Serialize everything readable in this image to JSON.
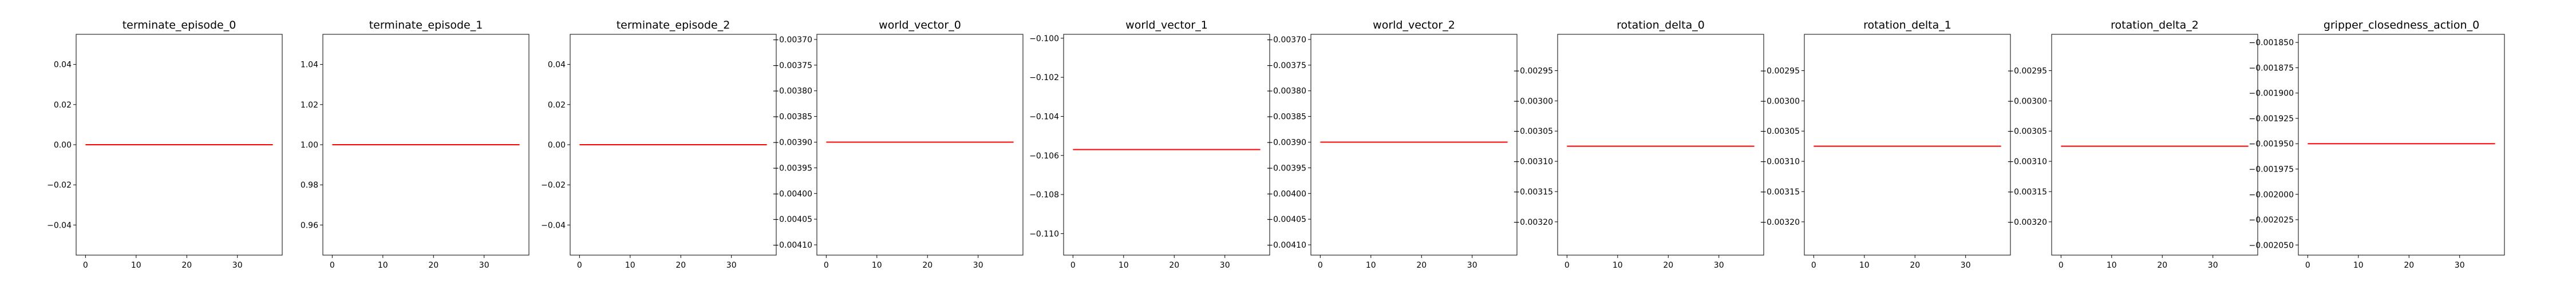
{
  "chart_data": [
    {
      "type": "line",
      "title": "terminate_episode_0",
      "x": [
        0,
        37
      ],
      "xticks": [
        0,
        10,
        20,
        30
      ],
      "xlim": [
        -1.85,
        38.85
      ],
      "yticks": [
        0.04,
        0.02,
        0.0,
        -0.02,
        -0.04
      ],
      "ytick_labels": [
        "0.04",
        "0.02",
        "0.00",
        "−0.02",
        "−0.04"
      ],
      "ylim": [
        -0.055,
        0.055
      ],
      "series": [
        {
          "values": [
            0.0,
            0.0
          ],
          "color": "#ff0000"
        }
      ],
      "grid": false
    },
    {
      "type": "line",
      "title": "terminate_episode_1",
      "x": [
        0,
        37
      ],
      "xticks": [
        0,
        10,
        20,
        30
      ],
      "xlim": [
        -1.85,
        38.85
      ],
      "yticks": [
        1.04,
        1.02,
        1.0,
        0.98,
        0.96
      ],
      "ytick_labels": [
        "1.04",
        "1.02",
        "1.00",
        "0.98",
        "0.96"
      ],
      "ylim": [
        0.945,
        1.055
      ],
      "series": [
        {
          "values": [
            1.0,
            1.0
          ],
          "color": "#ff0000"
        }
      ],
      "grid": false
    },
    {
      "type": "line",
      "title": "terminate_episode_2",
      "x": [
        0,
        37
      ],
      "xticks": [
        0,
        10,
        20,
        30
      ],
      "xlim": [
        -1.85,
        38.85
      ],
      "yticks": [
        0.04,
        0.02,
        0.0,
        -0.02,
        -0.04
      ],
      "ytick_labels": [
        "0.04",
        "0.02",
        "0.00",
        "−0.02",
        "−0.04"
      ],
      "ylim": [
        -0.055,
        0.055
      ],
      "series": [
        {
          "values": [
            0.0,
            0.0
          ],
          "color": "#ff0000"
        }
      ],
      "grid": false
    },
    {
      "type": "line",
      "title": "world_vector_0",
      "x": [
        0,
        37
      ],
      "xticks": [
        0,
        10,
        20,
        30
      ],
      "xlim": [
        -1.85,
        38.85
      ],
      "yticks": [
        -0.0037,
        -0.00375,
        -0.0038,
        -0.00385,
        -0.0039,
        -0.00395,
        -0.004,
        -0.00405,
        -0.0041
      ],
      "ytick_labels": [
        "−0.00370",
        "−0.00375",
        "−0.00380",
        "−0.00385",
        "−0.00390",
        "−0.00395",
        "−0.00400",
        "−0.00405",
        "−0.00410"
      ],
      "ylim": [
        -0.00412,
        -0.00369
      ],
      "series": [
        {
          "values": [
            -0.0039,
            -0.0039
          ],
          "color": "#ff0000"
        }
      ],
      "grid": false
    },
    {
      "type": "line",
      "title": "world_vector_1",
      "x": [
        0,
        37
      ],
      "xticks": [
        0,
        10,
        20,
        30
      ],
      "xlim": [
        -1.85,
        38.85
      ],
      "yticks": [
        -0.1,
        -0.102,
        -0.104,
        -0.106,
        -0.108,
        -0.11
      ],
      "ytick_labels": [
        "−0.100",
        "−0.102",
        "−0.104",
        "−0.106",
        "−0.108",
        "−0.110"
      ],
      "ylim": [
        -0.1111,
        -0.0998
      ],
      "series": [
        {
          "values": [
            -0.1057,
            -0.1057
          ],
          "color": "#ff0000"
        }
      ],
      "grid": false
    },
    {
      "type": "line",
      "title": "world_vector_2",
      "x": [
        0,
        37
      ],
      "xticks": [
        0,
        10,
        20,
        30
      ],
      "xlim": [
        -1.85,
        38.85
      ],
      "yticks": [
        -0.0037,
        -0.00375,
        -0.0038,
        -0.00385,
        -0.0039,
        -0.00395,
        -0.004,
        -0.00405,
        -0.0041
      ],
      "ytick_labels": [
        "−0.00370",
        "−0.00375",
        "−0.00380",
        "−0.00385",
        "−0.00390",
        "−0.00395",
        "−0.00400",
        "−0.00405",
        "−0.00410"
      ],
      "ylim": [
        -0.00412,
        -0.00369
      ],
      "series": [
        {
          "values": [
            -0.0039,
            -0.0039
          ],
          "color": "#ff0000"
        }
      ],
      "grid": false
    },
    {
      "type": "line",
      "title": "rotation_delta_0",
      "x": [
        0,
        37
      ],
      "xticks": [
        0,
        10,
        20,
        30
      ],
      "xlim": [
        -1.85,
        38.85
      ],
      "yticks": [
        -0.00295,
        -0.003,
        -0.00305,
        -0.0031,
        -0.00315,
        -0.0032
      ],
      "ytick_labels": [
        "−0.00295",
        "−0.00300",
        "−0.00305",
        "−0.00310",
        "−0.00315",
        "−0.00320"
      ],
      "ylim": [
        -0.003255,
        -0.00289
      ],
      "series": [
        {
          "values": [
            -0.003075,
            -0.003075
          ],
          "color": "#ff0000"
        }
      ],
      "grid": false
    },
    {
      "type": "line",
      "title": "rotation_delta_1",
      "x": [
        0,
        37
      ],
      "xticks": [
        0,
        10,
        20,
        30
      ],
      "xlim": [
        -1.85,
        38.85
      ],
      "yticks": [
        -0.00295,
        -0.003,
        -0.00305,
        -0.0031,
        -0.00315,
        -0.0032
      ],
      "ytick_labels": [
        "−0.00295",
        "−0.00300",
        "−0.00305",
        "−0.00310",
        "−0.00315",
        "−0.00320"
      ],
      "ylim": [
        -0.003255,
        -0.00289
      ],
      "series": [
        {
          "values": [
            -0.003075,
            -0.003075
          ],
          "color": "#ff0000"
        }
      ],
      "grid": false
    },
    {
      "type": "line",
      "title": "rotation_delta_2",
      "x": [
        0,
        37
      ],
      "xticks": [
        0,
        10,
        20,
        30
      ],
      "xlim": [
        -1.85,
        38.85
      ],
      "yticks": [
        -0.00295,
        -0.003,
        -0.00305,
        -0.0031,
        -0.00315,
        -0.0032
      ],
      "ytick_labels": [
        "−0.00295",
        "−0.00300",
        "−0.00305",
        "−0.00310",
        "−0.00315",
        "−0.00320"
      ],
      "ylim": [
        -0.003255,
        -0.00289
      ],
      "series": [
        {
          "values": [
            -0.003075,
            -0.003075
          ],
          "color": "#ff0000"
        }
      ],
      "grid": false
    },
    {
      "type": "line",
      "title": "gripper_closedness_action_0",
      "x": [
        0,
        37
      ],
      "xticks": [
        0,
        10,
        20,
        30
      ],
      "xlim": [
        -1.85,
        38.85
      ],
      "yticks": [
        -0.00185,
        -0.001875,
        -0.0019,
        -0.001925,
        -0.00195,
        -0.001975,
        -0.002,
        -0.002025,
        -0.00205
      ],
      "ytick_labels": [
        "−0.001850",
        "−0.001875",
        "−0.001900",
        "−0.001925",
        "−0.001950",
        "−0.001975",
        "−0.002000",
        "−0.002025",
        "−0.002050"
      ],
      "ylim": [
        -0.00206,
        -0.001842
      ],
      "series": [
        {
          "values": [
            -0.00195,
            -0.00195
          ],
          "color": "#ff0000"
        }
      ],
      "grid": false
    }
  ]
}
